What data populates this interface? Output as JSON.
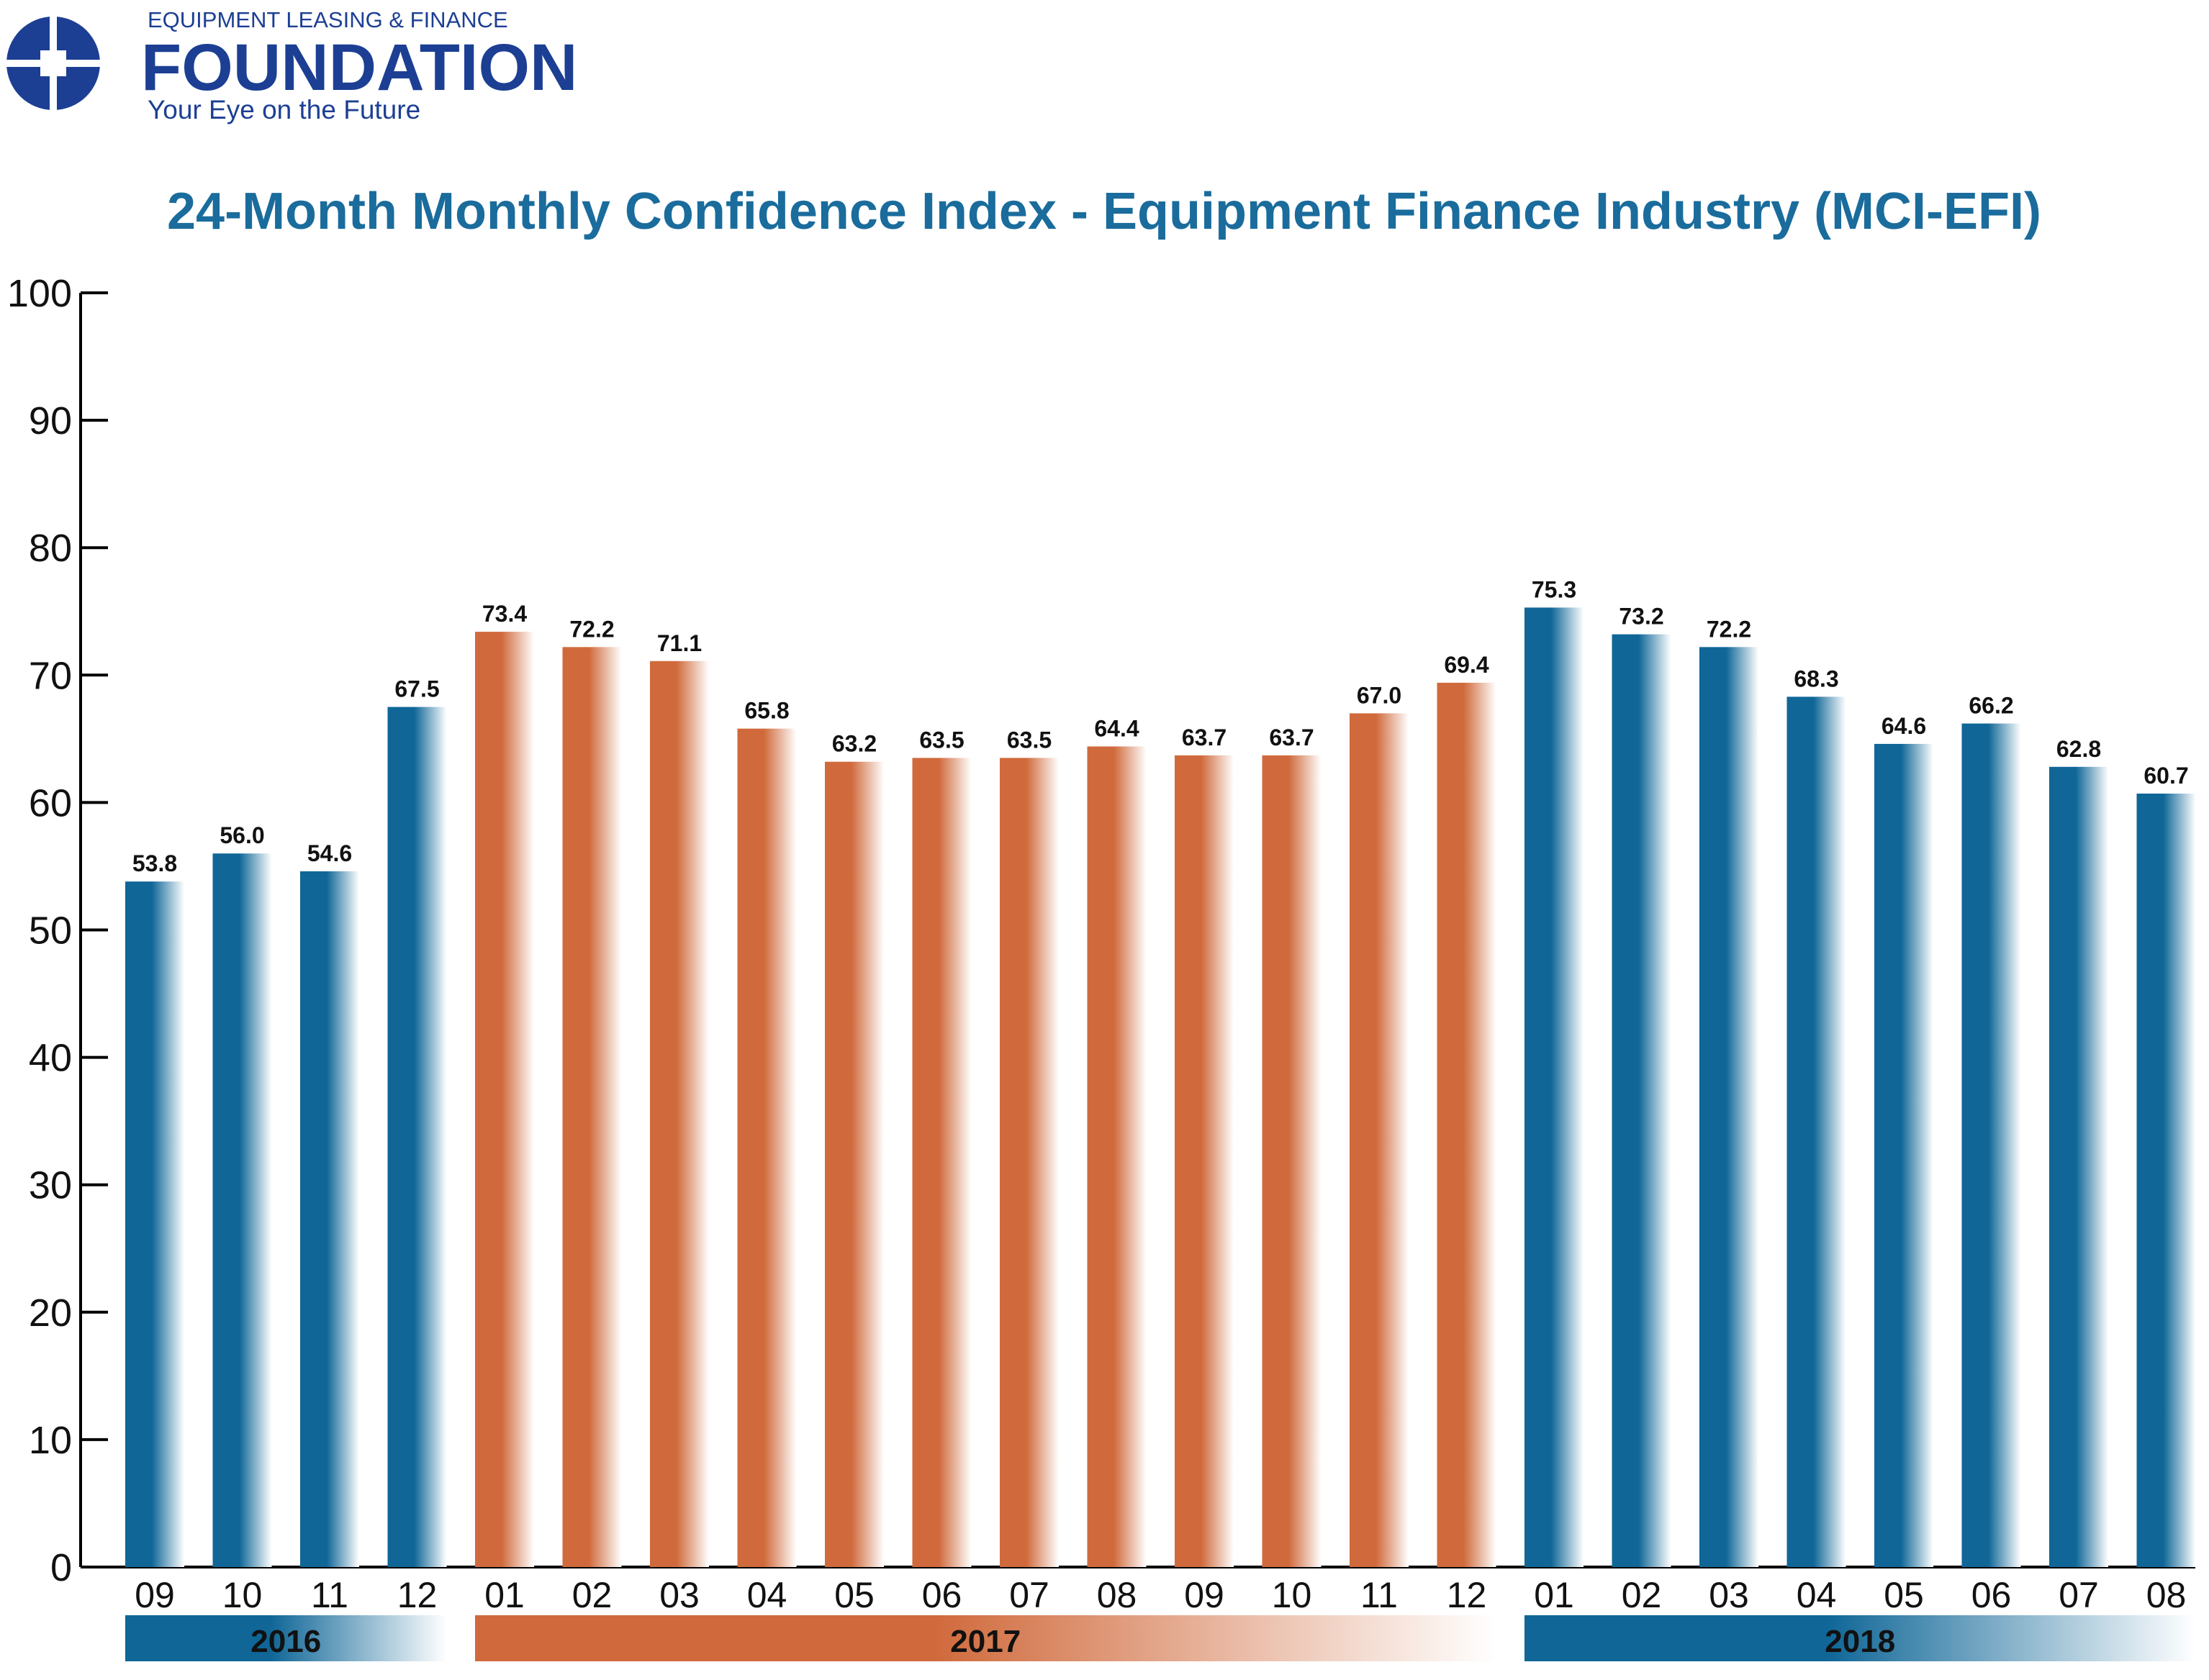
{
  "logo": {
    "top": "EQUIPMENT LEASING & FINANCE",
    "name": "FOUNDATION",
    "tagline": "Your Eye on the Future"
  },
  "chart_data": {
    "type": "bar",
    "title": "24-Month Monthly Confidence Index - Equipment Finance Industry (MCI-EFI)",
    "categories": [
      "09",
      "10",
      "11",
      "12",
      "01",
      "02",
      "03",
      "04",
      "05",
      "06",
      "07",
      "08",
      "09",
      "10",
      "11",
      "12",
      "01",
      "02",
      "03",
      "04",
      "05",
      "06",
      "07",
      "08"
    ],
    "series": [
      {
        "name": "2016",
        "color": "#0f6697",
        "values": [
          53.8,
          56.0,
          54.6,
          67.5,
          null,
          null,
          null,
          null,
          null,
          null,
          null,
          null,
          null,
          null,
          null,
          null,
          null,
          null,
          null,
          null,
          null,
          null,
          null,
          null
        ],
        "value_labels": [
          "53.8",
          "56.0",
          "54.6",
          "67.5",
          null,
          null,
          null,
          null,
          null,
          null,
          null,
          null,
          null,
          null,
          null,
          null,
          null,
          null,
          null,
          null,
          null,
          null,
          null,
          null
        ]
      },
      {
        "name": "2017",
        "color": "#d06a3c",
        "values": [
          null,
          null,
          null,
          null,
          73.4,
          72.2,
          71.1,
          65.8,
          63.2,
          63.5,
          63.5,
          64.4,
          63.7,
          63.7,
          67.0,
          69.4,
          null,
          null,
          null,
          null,
          null,
          null,
          null,
          null
        ],
        "value_labels": [
          null,
          null,
          null,
          null,
          "73.4",
          "72.2",
          "71.1",
          "65.8",
          "63.2",
          "63.5",
          "63.5",
          "64.4",
          "63.7",
          "63.7",
          "67.0",
          "69.4",
          null,
          null,
          null,
          null,
          null,
          null,
          null,
          null
        ]
      },
      {
        "name": "2018",
        "color": "#0f6697",
        "values": [
          null,
          null,
          null,
          null,
          null,
          null,
          null,
          null,
          null,
          null,
          null,
          null,
          null,
          null,
          null,
          null,
          75.3,
          73.2,
          72.2,
          68.3,
          64.6,
          66.2,
          62.8,
          60.7
        ],
        "value_labels": [
          null,
          null,
          null,
          null,
          null,
          null,
          null,
          null,
          null,
          null,
          null,
          null,
          null,
          null,
          null,
          null,
          "75.3",
          "73.2",
          "72.2",
          "68.3",
          "64.6",
          "66.2",
          "62.8",
          "60.7"
        ]
      }
    ],
    "ylim": [
      0,
      100
    ],
    "yticks": [
      0,
      10,
      20,
      30,
      40,
      50,
      60,
      70,
      80,
      90,
      100
    ],
    "grid": false
  }
}
